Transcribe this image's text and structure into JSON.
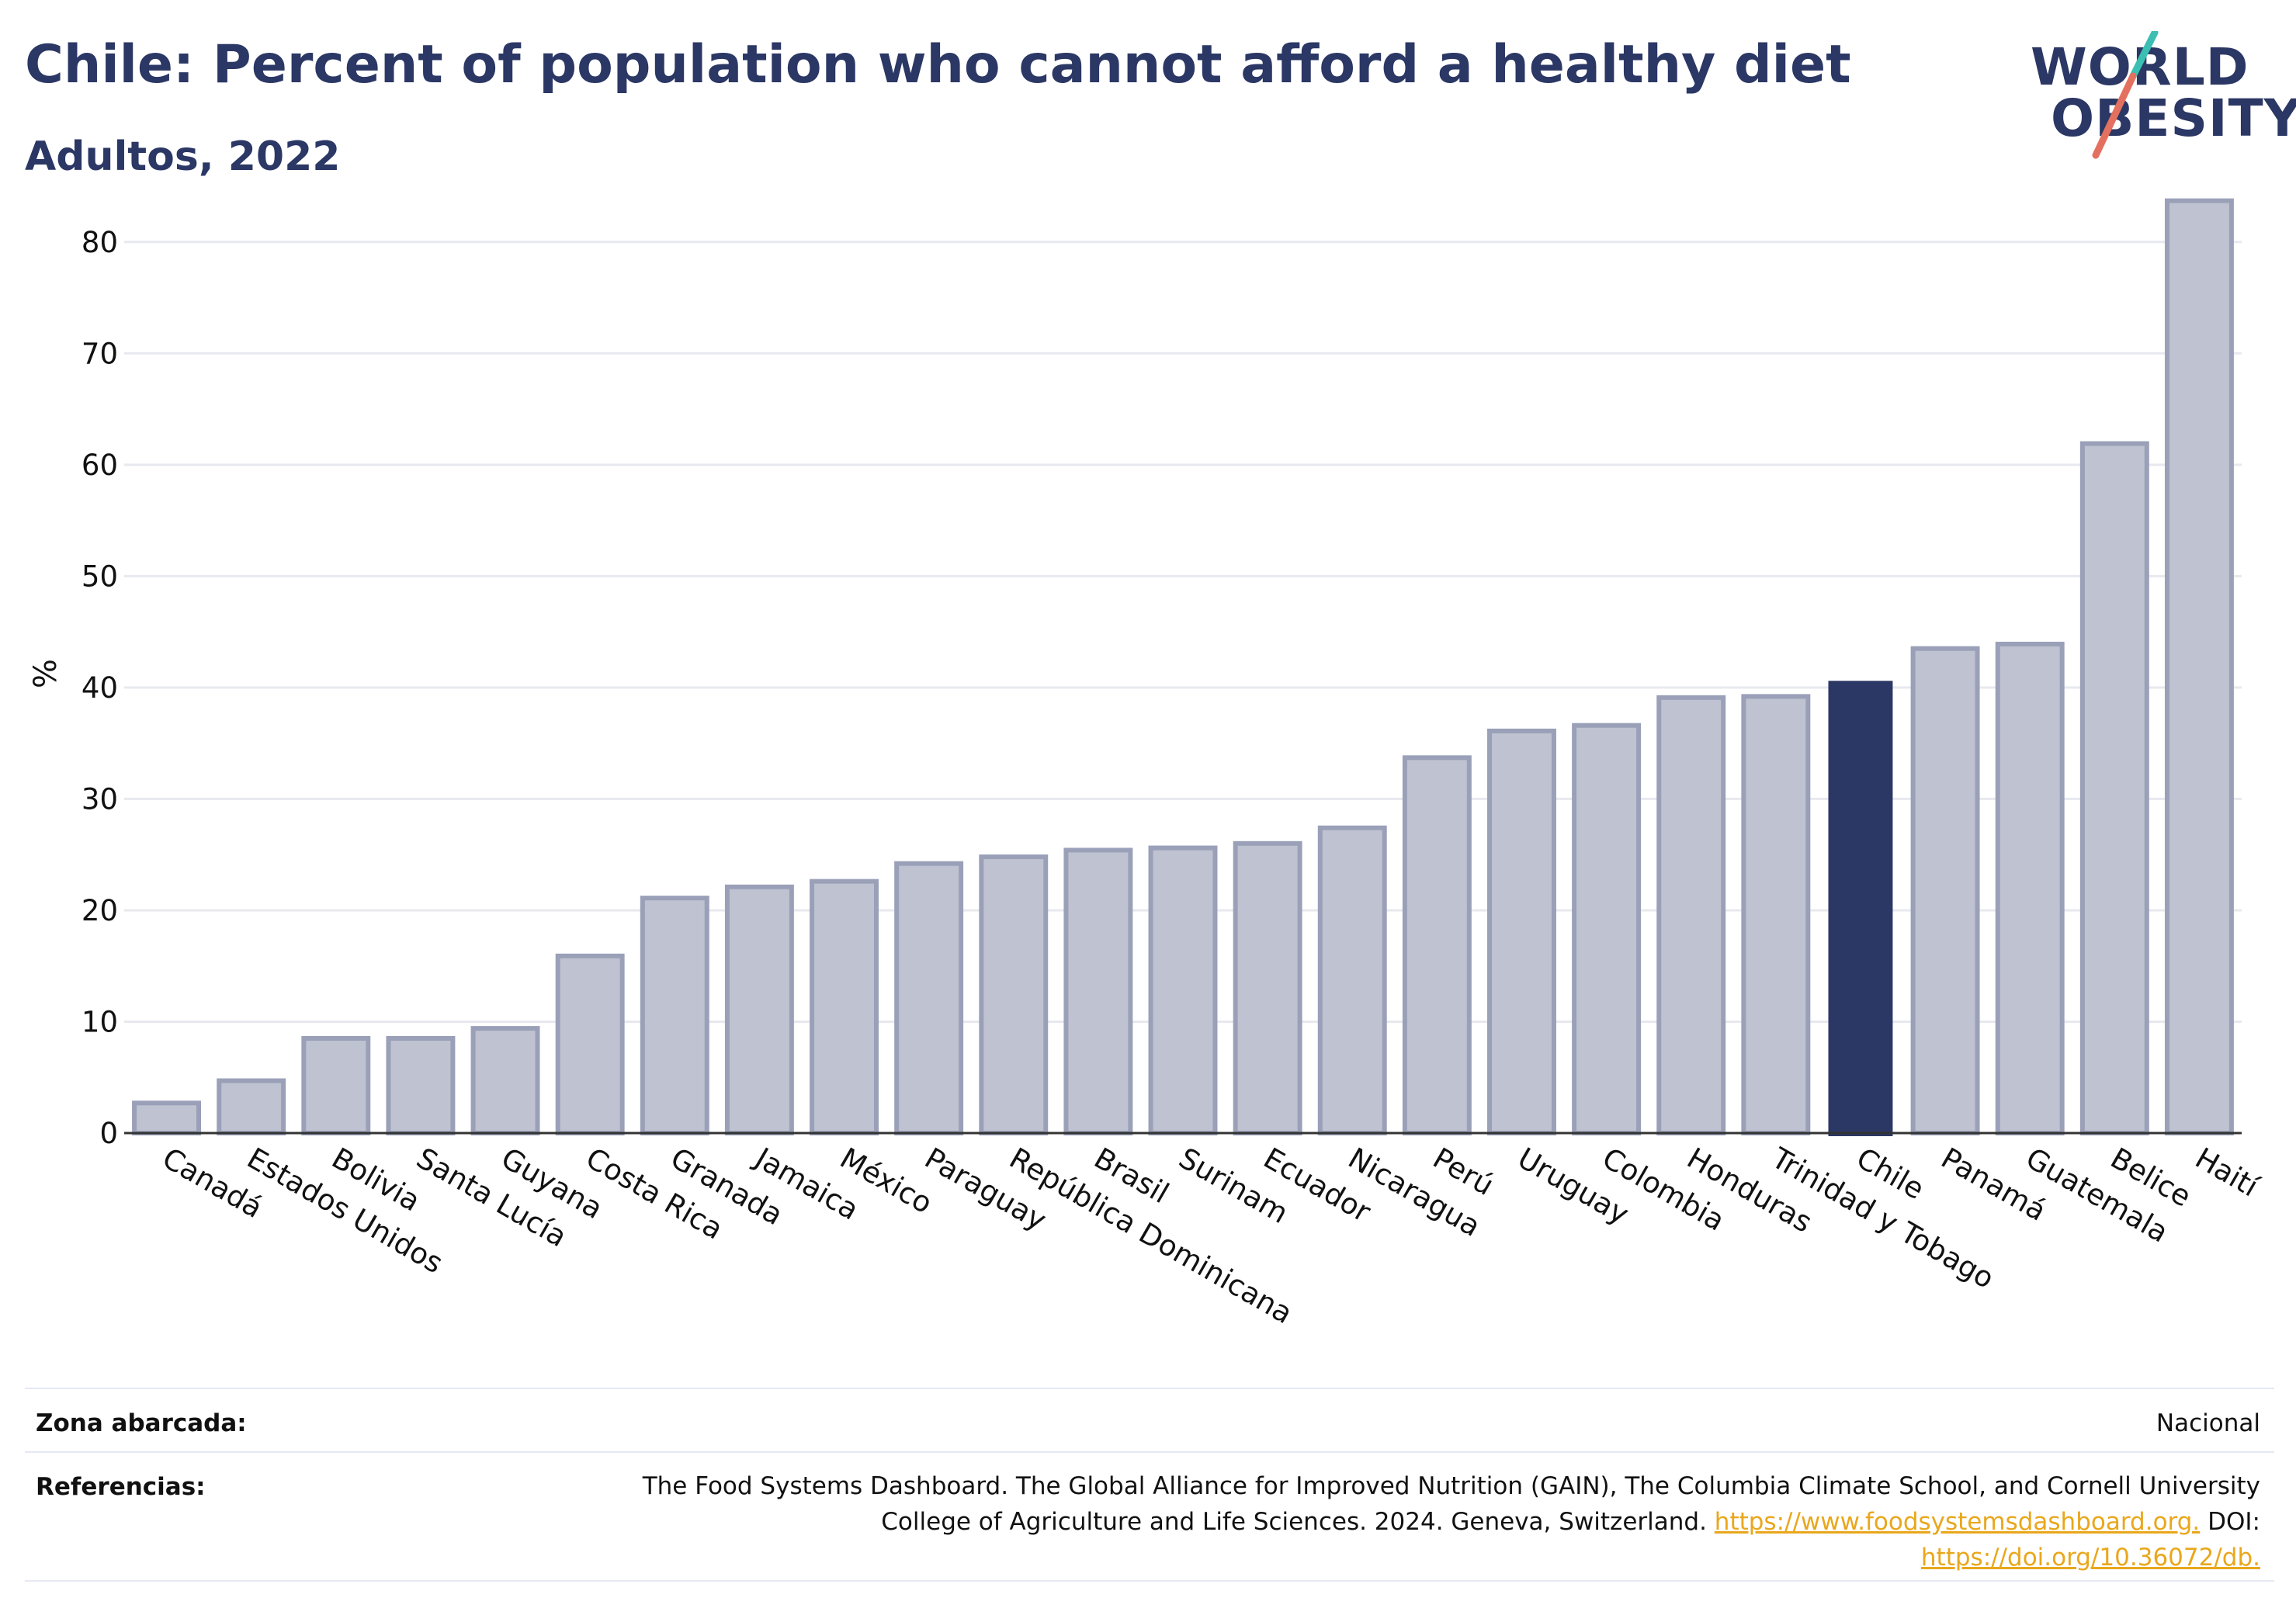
{
  "header": {
    "title": "Chile: Percent of population who cannot afford a healthy diet",
    "subtitle": "Adultos, 2022"
  },
  "logo": {
    "line1": "WORLD",
    "line2": "OBESITY",
    "accent_colors": [
      "#3bbfb2",
      "#e4705f"
    ]
  },
  "colors": {
    "bar": "#bfc2d0",
    "bar_stroke": "#9aa0b8",
    "highlight": "#2b3764",
    "grid": "#e8e9ef",
    "text": "#2b3764",
    "link": "#e9a71c"
  },
  "chart_data": {
    "type": "bar",
    "title": "Chile: Percent of population who cannot afford a healthy diet",
    "subtitle": "Adultos, 2022",
    "xlabel": "",
    "ylabel": "%",
    "ylim": [
      0,
      85
    ],
    "yticks": [
      0,
      10,
      20,
      30,
      40,
      50,
      60,
      70,
      80
    ],
    "grid": true,
    "highlight": "Chile",
    "categories": [
      "Canadá",
      "Estados Unidos",
      "Bolivia",
      "Santa Lucía",
      "Guyana",
      "Costa Rica",
      "Granada",
      "Jamaica",
      "México",
      "Paraguay",
      "República Dominicana",
      "Brasil",
      "Surinam",
      "Ecuador",
      "Nicaragua",
      "Perú",
      "Uruguay",
      "Colombia",
      "Honduras",
      "Trinidad y Tobago",
      "Chile",
      "Panamá",
      "Guatemala",
      "Belice",
      "Haití"
    ],
    "values": [
      2.7,
      4.7,
      8.5,
      8.5,
      9.4,
      15.9,
      21.1,
      22.1,
      22.6,
      24.2,
      24.8,
      25.4,
      25.6,
      26.0,
      27.4,
      33.7,
      36.1,
      36.6,
      39.1,
      39.2,
      40.6,
      43.5,
      43.9,
      61.9,
      83.7
    ]
  },
  "footer": {
    "area_label": "Zona abarcada:",
    "area_value": "Nacional",
    "refs_label": "Referencias:",
    "refs_line1": "The Food Systems Dashboard. The Global Alliance for Improved Nutrition (GAIN), The Columbia Climate School, and Cornell University",
    "refs_line2_text": "College of Agriculture and Life Sciences. 2024. Geneva, Switzerland. ",
    "refs_link1": "https://www.foodsystemsdashboard.org.",
    "refs_doi": " DOI:",
    "refs_link2": "https://doi.org/10.36072/db."
  }
}
